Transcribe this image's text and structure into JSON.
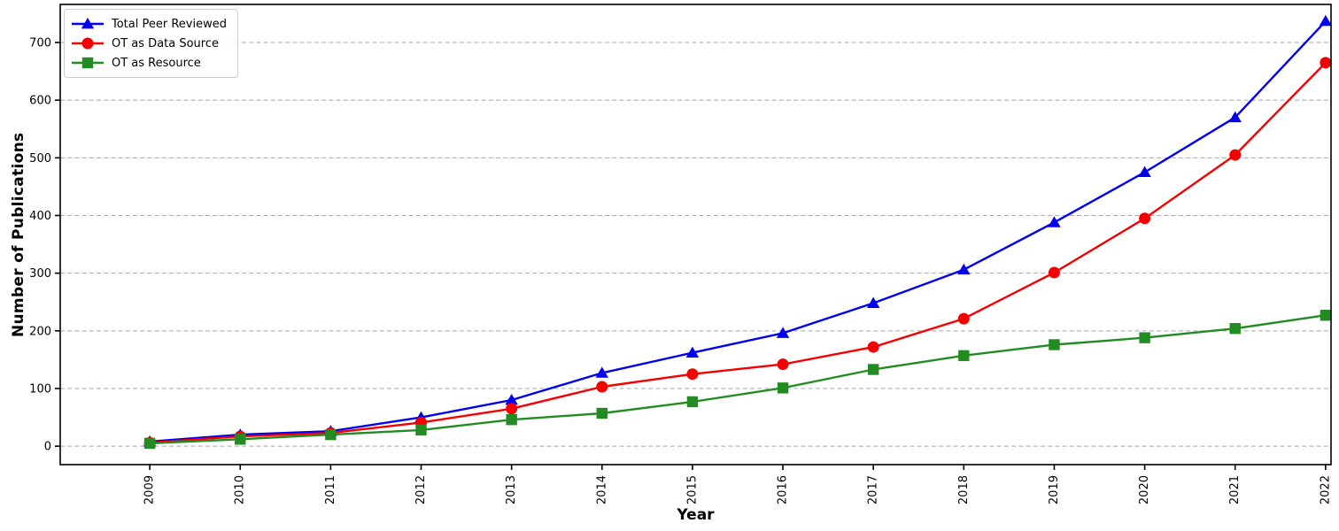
{
  "chart_data": {
    "type": "line",
    "title": "",
    "xlabel": "Year",
    "ylabel": "Number of Publications",
    "x": [
      2009,
      2010,
      2011,
      2012,
      2013,
      2014,
      2015,
      2016,
      2017,
      2018,
      2019,
      2020,
      2021,
      2022
    ],
    "x_tick_labels": [
      "2009",
      "2010",
      "2011",
      "2012",
      "2013",
      "2014",
      "2015",
      "2016",
      "2017",
      "2018",
      "2019",
      "2020",
      "2021",
      "2022"
    ],
    "yticks": [
      0,
      100,
      200,
      300,
      400,
      500,
      600,
      700
    ],
    "ylim": [
      -32,
      766
    ],
    "xlim": [
      2008.01,
      2022.06
    ],
    "grid": "horizontal-dashed",
    "grid_color": "#a8a8a8",
    "axis_color": "#000000",
    "background": "#ffffff",
    "legend_position": "upper-left",
    "series": [
      {
        "name": "Total Peer Reviewed",
        "color": "#0000ee",
        "marker": "triangle",
        "values": [
          8,
          20,
          26,
          50,
          80,
          127,
          162,
          196,
          248,
          306,
          388,
          475,
          570,
          737
        ]
      },
      {
        "name": "OT as Data Source",
        "color": "#f40000",
        "marker": "circle",
        "values": [
          6,
          17,
          23,
          41,
          65,
          103,
          125,
          142,
          172,
          221,
          301,
          395,
          505,
          665
        ]
      },
      {
        "name": "OT as Resource",
        "color": "#228b22",
        "marker": "square",
        "values": [
          5,
          12,
          20,
          28,
          46,
          57,
          77,
          101,
          133,
          157,
          176,
          188,
          204,
          227
        ]
      }
    ]
  }
}
